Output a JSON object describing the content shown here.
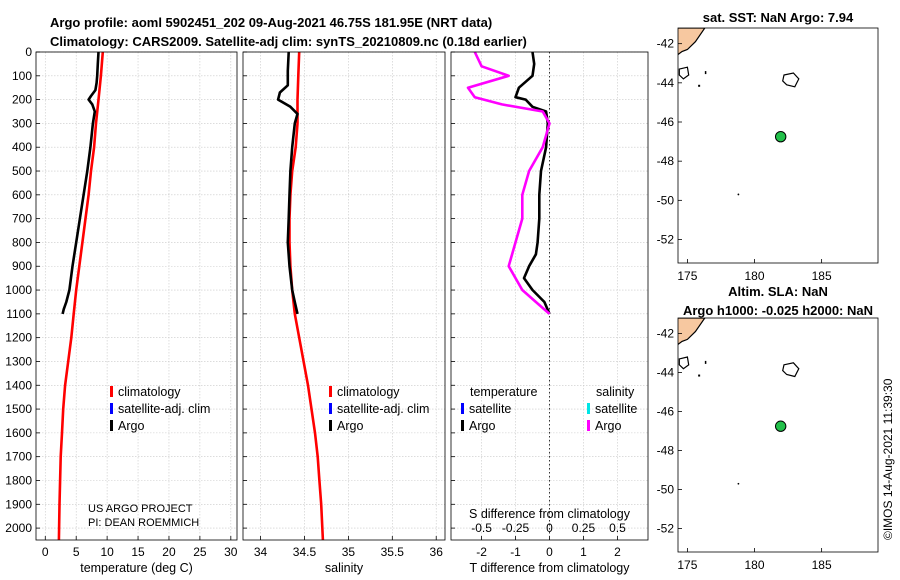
{
  "header": {
    "line1": "Argo profile: aoml 5902451_202 09-Aug-2021 46.75S 181.95E (NRT data)",
    "line2": "Climatology: CARS2009. Satellite-adj clim: synTS_20210809.nc (0.18d earlier)"
  },
  "side_label": "©IMOS 14-Aug-2021 11:39:30",
  "credit": {
    "line1": "US ARGO PROJECT",
    "line2": "PI: DEAN ROEMMICH"
  },
  "colors": {
    "climatology": "#ff0000",
    "satellite": "#0000ff",
    "argo": "#000000",
    "sal_satellite": "#00e5e5",
    "sal_argo": "#ff00ff",
    "land": "#f7c8a0",
    "float_marker": "#22c04a"
  },
  "depth_ticks": [
    "0",
    "100",
    "200",
    "300",
    "400",
    "500",
    "600",
    "700",
    "800",
    "900",
    "1000",
    "1100",
    "1200",
    "1300",
    "1400",
    "1500",
    "1600",
    "1700",
    "1800",
    "1900",
    "2000"
  ],
  "chart_data": [
    {
      "type": "line",
      "xlabel": "temperature (deg C)",
      "xlim": [
        -1.5,
        31
      ],
      "ylim": [
        2050,
        0
      ],
      "xticks": [
        "0",
        "5",
        "10",
        "15",
        "20",
        "25",
        "30"
      ],
      "grid": true,
      "legend": {
        "position": "center-right",
        "entries": [
          "climatology",
          "satellite-adj. clim",
          "Argo"
        ]
      },
      "series": [
        {
          "name": "climatology",
          "color": "#ff0000",
          "x": [
            9.3,
            9.0,
            8.6,
            8.2,
            7.9,
            7.4,
            7.0,
            6.5,
            6.0,
            5.5,
            5.0,
            4.6,
            4.2,
            3.7,
            3.2,
            2.9,
            2.7,
            2.5,
            2.4,
            2.3,
            2.2
          ],
          "y": [
            0,
            100,
            200,
            300,
            400,
            500,
            600,
            700,
            800,
            900,
            1000,
            1100,
            1200,
            1300,
            1400,
            1500,
            1600,
            1700,
            1800,
            1900,
            2050
          ]
        },
        {
          "name": "Argo",
          "color": "#000000",
          "x": [
            8.6,
            8.5,
            8.4,
            8.3,
            8.1,
            7.4,
            7.0,
            7.6,
            8.0,
            7.7,
            7.3,
            6.8,
            6.2,
            5.6,
            5.0,
            4.4,
            3.9,
            3.4,
            3.0,
            2.8
          ],
          "y": [
            0,
            50,
            100,
            130,
            160,
            185,
            200,
            220,
            250,
            300,
            400,
            500,
            600,
            700,
            800,
            900,
            1000,
            1050,
            1080,
            1100
          ]
        }
      ]
    },
    {
      "type": "line",
      "xlabel": "salinity",
      "xlim": [
        33.8,
        36.1
      ],
      "ylim": [
        2050,
        0
      ],
      "xticks": [
        "34",
        "34.5",
        "35",
        "35.5",
        "36"
      ],
      "grid": true,
      "legend": {
        "position": "center-right",
        "entries": [
          "climatology",
          "satellite-adj. clim",
          "Argo"
        ]
      },
      "series": [
        {
          "name": "climatology",
          "color": "#ff0000",
          "x": [
            34.44,
            34.43,
            34.42,
            34.42,
            34.4,
            34.36,
            34.34,
            34.33,
            34.33,
            34.34,
            34.36,
            34.39,
            34.44,
            34.49,
            34.54,
            34.58,
            34.62,
            34.65,
            34.67,
            34.69,
            34.71
          ],
          "y": [
            0,
            100,
            200,
            300,
            400,
            500,
            600,
            700,
            800,
            900,
            1000,
            1100,
            1200,
            1300,
            1400,
            1500,
            1600,
            1700,
            1800,
            1900,
            2050
          ]
        },
        {
          "name": "Argo",
          "color": "#000000",
          "x": [
            34.32,
            34.31,
            34.31,
            34.22,
            34.2,
            34.34,
            34.42,
            34.39,
            34.36,
            34.34,
            34.33,
            34.32,
            34.31,
            34.33,
            34.36,
            34.39,
            34.42
          ],
          "y": [
            0,
            80,
            140,
            170,
            200,
            230,
            260,
            300,
            400,
            500,
            600,
            700,
            800,
            900,
            1000,
            1050,
            1100
          ]
        }
      ]
    },
    {
      "type": "line",
      "xlabel": "T difference from climatology",
      "x2label": "S difference from climatology",
      "xlim": [
        -2.9,
        2.9
      ],
      "ylim": [
        2050,
        0
      ],
      "xticks": [
        "-2",
        "-1",
        "0",
        "1",
        "2"
      ],
      "x2ticks": [
        "-0.5",
        "-0.25",
        "0",
        "0.25",
        "0.5"
      ],
      "grid": true,
      "legend": {
        "position": "center",
        "temperature_title": "temperature",
        "salinity_title": "salinity",
        "entries": [
          "satellite",
          "Argo"
        ]
      },
      "series": [
        {
          "name": "temperature Argo",
          "color": "#000000",
          "x": [
            -0.5,
            -0.45,
            -0.5,
            -0.9,
            -1.0,
            -0.7,
            -0.5,
            -0.1,
            -0.05,
            -0.1,
            -0.25,
            -0.3,
            -0.3,
            -0.35,
            -0.4,
            -0.6,
            -0.75,
            -0.5,
            -0.15,
            0.0
          ],
          "y": [
            0,
            50,
            100,
            150,
            190,
            200,
            230,
            250,
            300,
            400,
            500,
            600,
            700,
            800,
            850,
            900,
            950,
            1000,
            1050,
            1100
          ]
        },
        {
          "name": "salinity Argo",
          "color": "#ff00ff",
          "x": [
            -0.55,
            -0.5,
            -0.3,
            -0.6,
            -0.55,
            -0.35,
            -0.05,
            0.0,
            -0.05,
            -0.15,
            -0.2,
            -0.2,
            -0.25,
            -0.3,
            -0.2,
            -0.1,
            0.0
          ],
          "y": [
            0,
            60,
            100,
            150,
            190,
            220,
            250,
            300,
            400,
            500,
            600,
            700,
            800,
            900,
            1000,
            1050,
            1100
          ]
        }
      ]
    }
  ],
  "maps": [
    {
      "title": "sat. SST: NaN Argo: 7.94",
      "xticks": [
        "175",
        "180",
        "185"
      ],
      "yticks": [
        "-42",
        "-44",
        "-46",
        "-48",
        "-50",
        "-52"
      ],
      "xlim": [
        174.3,
        189.2
      ],
      "ylim": [
        -53.2,
        -41.2
      ],
      "float": {
        "lon": 181.95,
        "lat": -46.75
      }
    },
    {
      "title": "Altim. SLA: NaN",
      "subtitle": "Argo h1000: -0.025 h2000: NaN",
      "xticks": [
        "175",
        "180",
        "185"
      ],
      "yticks": [
        "-42",
        "-44",
        "-46",
        "-48",
        "-50",
        "-52"
      ],
      "xlim": [
        174.3,
        189.2
      ],
      "ylim": [
        -53.2,
        -41.2
      ],
      "float": {
        "lon": 181.95,
        "lat": -46.75
      }
    }
  ]
}
